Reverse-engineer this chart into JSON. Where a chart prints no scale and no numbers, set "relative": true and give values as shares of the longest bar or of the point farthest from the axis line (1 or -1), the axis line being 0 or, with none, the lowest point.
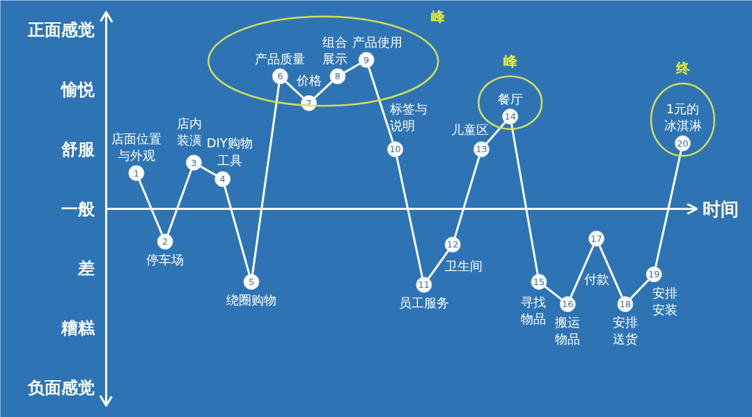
{
  "chart_data": {
    "type": "line",
    "relative": true,
    "xlabel": "时间",
    "categories": [
      "店面位置与外观",
      "停车场",
      "店内装潢",
      "DIY购物工具",
      "绕圈购物",
      "产品质量",
      "价格",
      "组合展示",
      "产品使用",
      "标签与说明",
      "员工服务",
      "卫生间",
      "儿童区",
      "餐厅",
      "寻找物品",
      "搬运物品",
      "付款",
      "安排送货",
      "安排安装",
      "1元的冰淇淋"
    ],
    "values": [
      0.24,
      -0.22,
      0.31,
      0.2,
      -0.49,
      0.89,
      0.71,
      0.89,
      1,
      0.4,
      -0.51,
      -0.24,
      0.4,
      0.62,
      -0.49,
      -0.64,
      -0.2,
      -0.64,
      -0.44,
      0.44
    ],
    "color": "#ffffff",
    "marker": "circle",
    "annotations": [
      "正面感觉",
      "愉悦",
      "舒服",
      "一般",
      "差",
      "糟糕",
      "负面感觉",
      {
        "text": "1",
        "x": "店面位置与外观",
        "y": 0.24
      },
      {
        "text": "2",
        "x": "停车场",
        "y": -0.22
      },
      {
        "text": "3",
        "x": "店内装潢",
        "y": 0.31
      },
      {
        "text": "4",
        "x": "DIY购物工具",
        "y": 0.2
      },
      {
        "text": "5",
        "x": "绕圈购物",
        "y": -0.49
      },
      {
        "text": "6",
        "x": "产品质量",
        "y": 0.89
      },
      {
        "text": "7",
        "x": "价格",
        "y": 0.71
      },
      {
        "text": "8",
        "x": "组合展示",
        "y": 0.89
      },
      {
        "text": "9",
        "x": "产品使用",
        "y": 1
      },
      {
        "text": "10",
        "x": "标签与说明",
        "y": 0.4
      },
      {
        "text": "11",
        "x": "员工服务",
        "y": -0.51
      },
      {
        "text": "12",
        "x": "卫生间",
        "y": -0.24
      },
      {
        "text": "13",
        "x": "儿童区",
        "y": 0.4
      },
      {
        "text": "14",
        "x": "餐厅",
        "y": 0.62
      },
      {
        "text": "15",
        "x": "寻找物品",
        "y": -0.49
      },
      {
        "text": "16",
        "x": "搬运物品",
        "y": -0.64
      },
      {
        "text": "17",
        "x": "付款",
        "y": -0.2
      },
      {
        "text": "18",
        "x": "安排送货",
        "y": -0.64
      },
      {
        "text": "19",
        "x": "安排安装",
        "y": -0.44
      },
      {
        "text": "20",
        "x": "1元的冰淇淋",
        "y": 0.44
      },
      "峰",
      "峰",
      "终"
    ]
  }
}
